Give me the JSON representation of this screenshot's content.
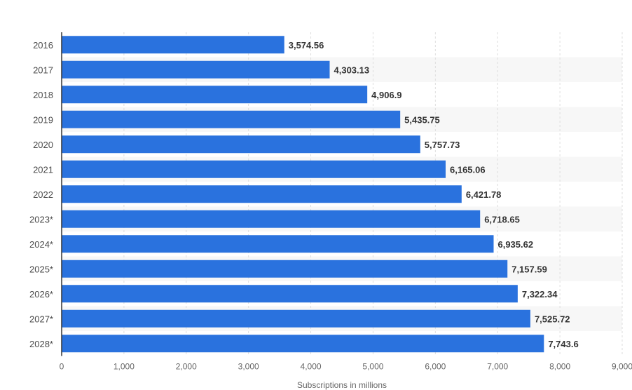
{
  "chart_data": {
    "type": "bar",
    "orientation": "horizontal",
    "categories": [
      "2016",
      "2017",
      "2018",
      "2019",
      "2020",
      "2021",
      "2022",
      "2023*",
      "2024*",
      "2025*",
      "2026*",
      "2027*",
      "2028*"
    ],
    "values": [
      3574.56,
      4303.13,
      4906.9,
      5435.75,
      5757.73,
      6165.06,
      6421.78,
      6718.65,
      6935.62,
      7157.59,
      7322.34,
      7525.72,
      7743.6
    ],
    "value_labels": [
      "3,574.56",
      "4,303.13",
      "4,906.9",
      "5,435.75",
      "5,757.73",
      "6,165.06",
      "6,421.78",
      "6,718.65",
      "6,935.62",
      "7,157.59",
      "7,322.34",
      "7,525.72",
      "7,743.6"
    ],
    "xlabel": "Subscriptions in millions",
    "ylabel": "",
    "xlim": [
      0,
      9000
    ],
    "x_ticks": [
      0,
      1000,
      2000,
      3000,
      4000,
      5000,
      6000,
      7000,
      8000,
      9000
    ],
    "x_tick_labels": [
      "0",
      "1,000",
      "2,000",
      "3,000",
      "4,000",
      "5,000",
      "6,000",
      "7,000",
      "8,000",
      "9,000"
    ],
    "grid": "vertical dashed",
    "alternating_row_bands": true,
    "legend": "none",
    "colors": {
      "bar": "#2a72de",
      "band": "#f7f7f7",
      "grid": "#dddddd",
      "axis": "#333333"
    }
  }
}
